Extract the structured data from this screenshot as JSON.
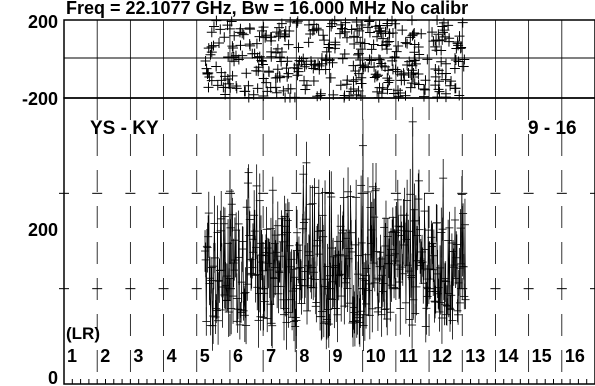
{
  "chart_data": {
    "type": "scatter",
    "title": "Freq = 22.1077 GHz, Bw = 16.000 MHz   No calibr",
    "baseline_label": "YS - KY",
    "channel_range_label": "9 - 16",
    "polarization_label": "(LR)",
    "phase_panel": {
      "ylim": [
        -200,
        200
      ],
      "tick_labels": [
        "200",
        "-200"
      ],
      "scan_range": [
        4.75,
        12.6
      ],
      "description_values_deg": "scattered uniformly between -200 and 200 (random phase)"
    },
    "amplitude_panel": {
      "ylim": [
        0,
        300
      ],
      "tick_labels": [
        "200",
        "0"
      ],
      "scan_range": [
        4.75,
        12.6
      ],
      "typical_range": [
        60,
        230
      ],
      "peak_values": [
        {
          "x": 11.0,
          "y": 275
        },
        {
          "x": 9.5,
          "y": 250
        },
        {
          "x": 7.8,
          "y": 232
        }
      ]
    },
    "x_channels": [
      "1",
      "2",
      "3",
      "4",
      "5",
      "6",
      "7",
      "8",
      "9",
      "10",
      "11",
      "12",
      "13",
      "14",
      "15",
      "16"
    ]
  }
}
